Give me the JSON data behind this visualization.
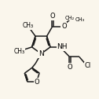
{
  "bg_color": "#faf6ec",
  "line_color": "#1a1a1a",
  "figsize": [
    1.26,
    1.26
  ],
  "dpi": 100,
  "xlim": [
    0.0,
    1.0
  ],
  "ylim": [
    0.0,
    1.0
  ]
}
